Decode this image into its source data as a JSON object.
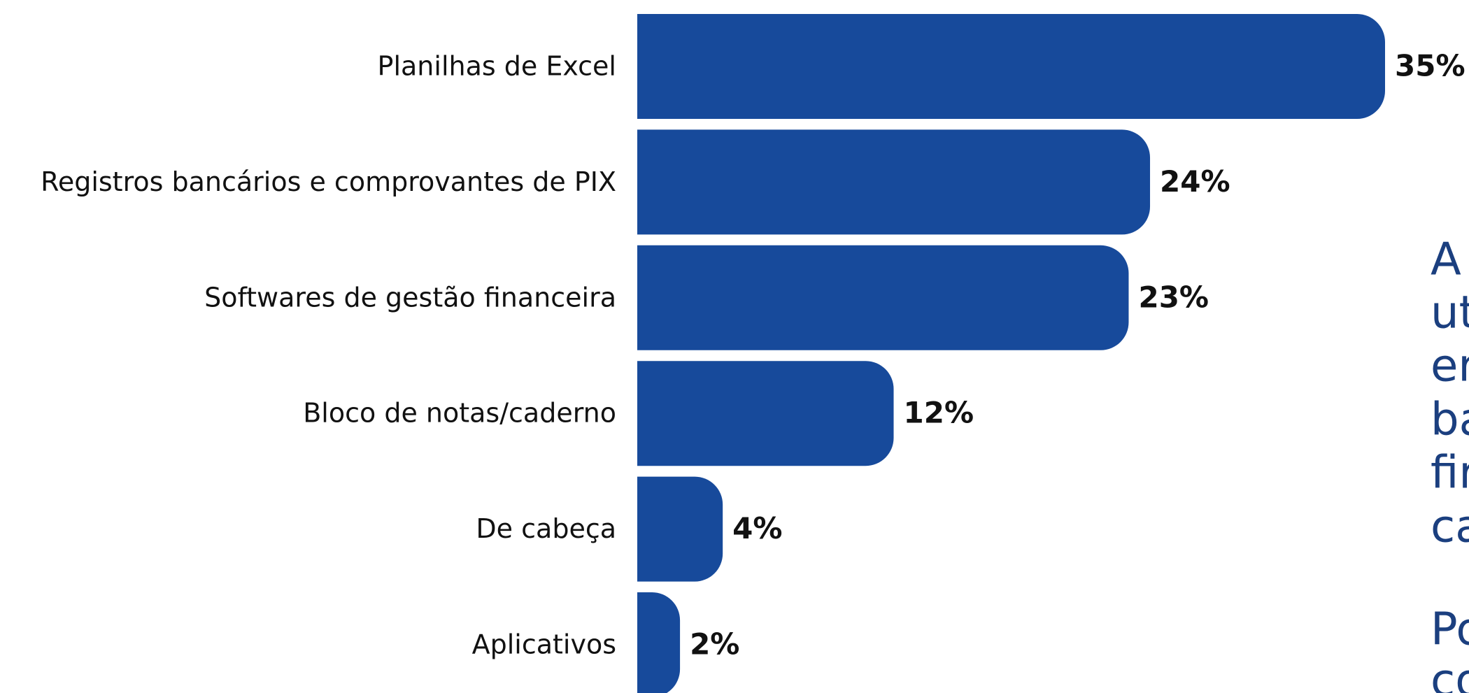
{
  "chart_data": {
    "type": "barh",
    "categories": [
      "Planilhas de Excel",
      "Registros bancários e comprovantes de PIX",
      "Softwares de gestão financeira",
      "Bloco de notas/caderno",
      "De cabeça",
      "Aplicativos"
    ],
    "values": [
      35,
      24,
      23,
      12,
      4,
      2
    ],
    "value_labels": [
      "35%",
      "24%",
      "23%",
      "12%",
      "4%",
      "2%"
    ],
    "color": "#174a9b",
    "annotations": [
      "A",
      "ut",
      "er",
      "ba",
      "fir",
      "ca",
      "Po",
      "co"
    ]
  }
}
